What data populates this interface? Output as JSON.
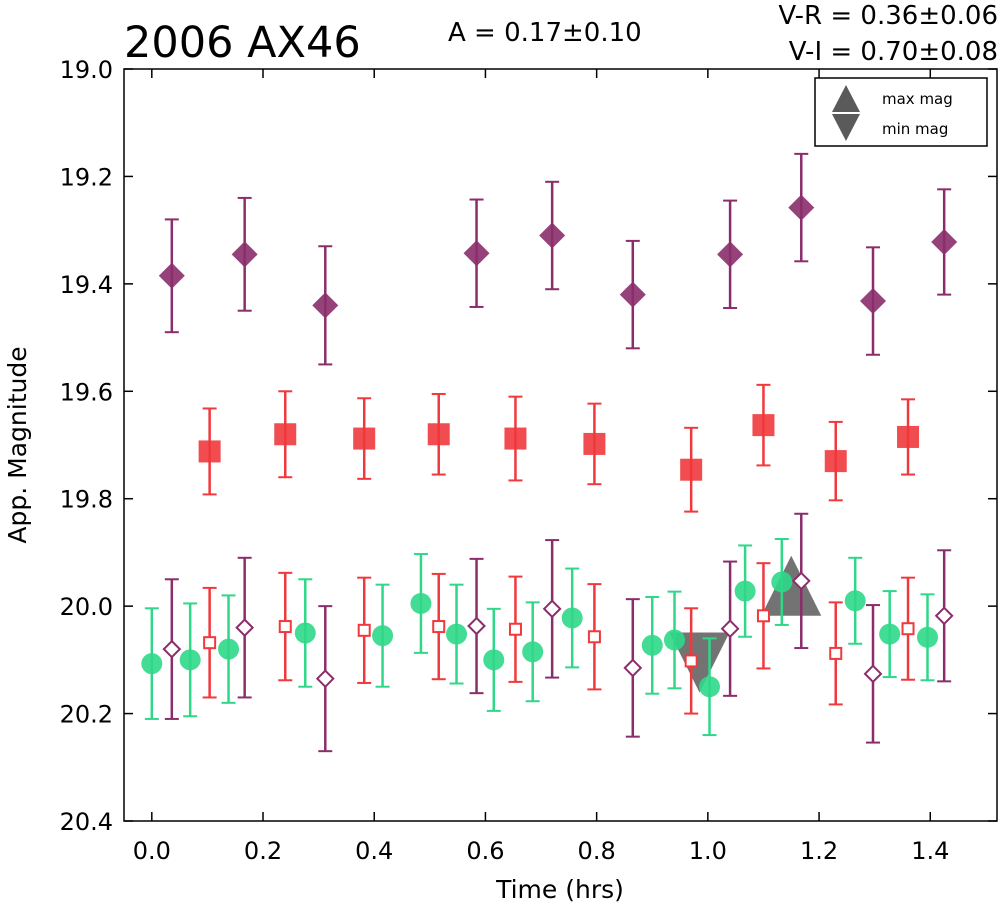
{
  "chart_data": {
    "type": "scatter",
    "title": "2006 AX46",
    "amplitude_text": "A  = 0.17±0.10",
    "color_text_1": "V-R = 0.36±0.06",
    "color_text_2": "V-I  = 0.70±0.08",
    "xlabel": "Time (hrs)",
    "ylabel": "App. Magnitude",
    "xlim": [
      -0.05,
      1.52
    ],
    "ylim": [
      19.0,
      20.4
    ],
    "y_inverted": true,
    "x_ticks": [
      "0.0",
      "0.2",
      "0.4",
      "0.6",
      "0.8",
      "1.0",
      "1.2",
      "1.4"
    ],
    "y_ticks": [
      "19.0",
      "19.2",
      "19.4",
      "19.6",
      "19.8",
      "20.0",
      "20.2",
      "20.4"
    ],
    "grid": false,
    "legend_position": "top-right",
    "legend": [
      {
        "label": "max mag",
        "marker": "triangle-up",
        "color": "#5a5a5a"
      },
      {
        "label": "min mag",
        "marker": "triangle-down",
        "color": "#5a5a5a"
      }
    ],
    "series": [
      {
        "marker": "diamond",
        "fill": "filled",
        "color": "#8b2d6b",
        "points": [
          [
            0.036,
            19.385,
            0.105
          ],
          [
            0.167,
            19.345,
            0.105
          ],
          [
            0.312,
            19.44,
            0.11
          ],
          [
            0.584,
            19.343,
            0.1
          ],
          [
            0.72,
            19.31,
            0.1
          ],
          [
            0.865,
            19.42,
            0.1
          ],
          [
            1.04,
            19.345,
            0.1
          ],
          [
            1.168,
            19.258,
            0.1
          ],
          [
            1.297,
            19.432,
            0.1
          ],
          [
            1.425,
            19.322,
            0.098
          ]
        ]
      },
      {
        "marker": "square",
        "fill": "filled",
        "color": "#f0393c",
        "points": [
          [
            0.104,
            19.712,
            0.08
          ],
          [
            0.24,
            19.68,
            0.08
          ],
          [
            0.382,
            19.688,
            0.075
          ],
          [
            0.516,
            19.68,
            0.075
          ],
          [
            0.654,
            19.688,
            0.078
          ],
          [
            0.796,
            19.698,
            0.075
          ],
          [
            0.97,
            19.746,
            0.078
          ],
          [
            1.1,
            19.663,
            0.075
          ],
          [
            1.23,
            19.73,
            0.073
          ],
          [
            1.36,
            19.685,
            0.07
          ]
        ]
      },
      {
        "marker": "circle",
        "fill": "filled",
        "color": "#2fd888",
        "points": [
          [
            0.0,
            20.107,
            0.103
          ],
          [
            0.069,
            20.1,
            0.105
          ],
          [
            0.138,
            20.08,
            0.1
          ],
          [
            0.276,
            20.05,
            0.1
          ],
          [
            0.415,
            20.055,
            0.095
          ],
          [
            0.484,
            19.995,
            0.092
          ],
          [
            0.548,
            20.052,
            0.092
          ],
          [
            0.615,
            20.1,
            0.095
          ],
          [
            0.685,
            20.085,
            0.092
          ],
          [
            0.756,
            20.022,
            0.092
          ],
          [
            0.9,
            20.073,
            0.09
          ],
          [
            0.94,
            20.063,
            0.09
          ],
          [
            1.003,
            20.15,
            0.09
          ],
          [
            1.067,
            19.972,
            0.085
          ],
          [
            1.133,
            19.955,
            0.08
          ],
          [
            1.265,
            19.99,
            0.08
          ],
          [
            1.327,
            20.052,
            0.08
          ],
          [
            1.395,
            20.058,
            0.08
          ]
        ]
      },
      {
        "marker": "square",
        "fill": "open",
        "color": "#f0393c",
        "points": [
          [
            0.104,
            20.068,
            0.102
          ],
          [
            0.24,
            20.038,
            0.1
          ],
          [
            0.382,
            20.045,
            0.098
          ],
          [
            0.516,
            20.038,
            0.098
          ],
          [
            0.654,
            20.043,
            0.098
          ],
          [
            0.796,
            20.057,
            0.098
          ],
          [
            0.97,
            20.102,
            0.098
          ],
          [
            1.1,
            20.018,
            0.098
          ],
          [
            1.23,
            20.088,
            0.095
          ],
          [
            1.36,
            20.042,
            0.095
          ]
        ]
      },
      {
        "marker": "diamond",
        "fill": "open",
        "color": "#8b2d6b",
        "points": [
          [
            0.036,
            20.08,
            0.13
          ],
          [
            0.167,
            20.04,
            0.13
          ],
          [
            0.312,
            20.135,
            0.135
          ],
          [
            0.584,
            20.037,
            0.125
          ],
          [
            0.72,
            20.005,
            0.128
          ],
          [
            0.865,
            20.115,
            0.128
          ],
          [
            1.04,
            20.042,
            0.125
          ],
          [
            1.168,
            19.953,
            0.125
          ],
          [
            1.297,
            20.126,
            0.128
          ],
          [
            1.425,
            20.018,
            0.122
          ]
        ]
      }
    ],
    "max_mag": [
      1.15,
      19.962
    ],
    "min_mag": [
      0.985,
      20.105
    ]
  }
}
